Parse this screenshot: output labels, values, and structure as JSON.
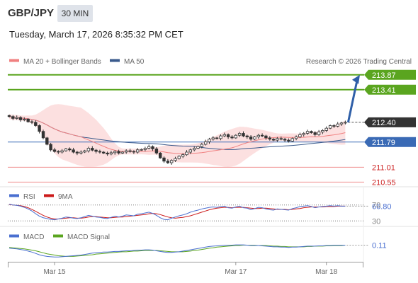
{
  "header": {
    "symbol": "GBP/JPY",
    "timeframe": "30 MIN",
    "datetime": "Tuesday, March 17, 2026 8:35:32 PM CET",
    "attribution": "Research © 2026 Trading Central"
  },
  "colors": {
    "resistance": "#5aa51f",
    "support": "#f08e8e",
    "pivot": "#3a6ab5",
    "current": "#333333",
    "bollinger_fill": "#fbd6d6",
    "ma20": "#f08080",
    "ma50": "#3a5a8c",
    "rsi": "#4a6fd0",
    "rsi_ma": "#cc1a1a",
    "macd": "#4a6fd0",
    "macd_signal": "#5aa51f",
    "arrow": "#2f5fa8"
  },
  "chart_data": [
    {
      "type": "candlestick",
      "legend": [
        {
          "name": "MA 20 + Bollinger Bands",
          "color": "#f08080"
        },
        {
          "name": "MA 50",
          "color": "#3a5a8c"
        }
      ],
      "ylim": [
        210.45,
        214.15
      ],
      "levels": [
        {
          "value": 213.87,
          "label": "213.87",
          "kind": "resistance"
        },
        {
          "value": 213.41,
          "label": "213.41",
          "kind": "resistance"
        },
        {
          "value": 212.4,
          "label": "212.40",
          "kind": "current"
        },
        {
          "value": 211.79,
          "label": "211.79",
          "kind": "pivot"
        },
        {
          "value": 211.01,
          "label": "211.01",
          "kind": "support"
        },
        {
          "value": 210.55,
          "label": "210.55",
          "kind": "support"
        }
      ],
      "close": [
        212.58,
        212.52,
        212.55,
        212.48,
        212.5,
        212.42,
        212.4,
        212.3,
        212.12,
        211.92,
        211.72,
        211.55,
        211.5,
        211.48,
        211.52,
        211.58,
        211.55,
        211.48,
        211.45,
        211.48,
        211.52,
        211.6,
        211.54,
        211.5,
        211.48,
        211.45,
        211.42,
        211.46,
        211.5,
        211.45,
        211.48,
        211.52,
        211.5,
        211.48,
        211.55,
        211.56,
        211.6,
        211.65,
        211.58,
        211.45,
        211.3,
        211.2,
        211.15,
        211.22,
        211.28,
        211.35,
        211.4,
        211.48,
        211.55,
        211.6,
        211.65,
        211.72,
        211.8,
        211.88,
        211.92,
        211.9,
        211.98,
        212.02,
        211.95,
        211.92,
        212.0,
        212.06,
        211.98,
        211.95,
        211.88,
        211.95,
        212.0,
        211.98,
        211.92,
        211.88,
        211.85,
        211.9,
        211.88,
        211.85,
        211.82,
        211.9,
        211.95,
        212.02,
        212.06,
        212.12,
        212.08,
        212.02,
        212.1,
        212.15,
        212.22,
        212.3,
        212.28,
        212.35,
        212.38,
        212.4
      ],
      "trend_arrow": {
        "from_value": 212.4,
        "to_value": 213.87
      }
    },
    {
      "type": "line",
      "legend": [
        {
          "name": "RSI",
          "color": "#4a6fd0"
        },
        {
          "name": "9MA",
          "color": "#cc1a1a"
        }
      ],
      "reference_lines": [
        70,
        30
      ],
      "ylim": [
        20,
        80
      ],
      "last_value_label": "66.80",
      "tick_labels": [
        "70",
        "30"
      ],
      "rsi": [
        72,
        70,
        69,
        67,
        64,
        60,
        55,
        48,
        42,
        38,
        36,
        34,
        33,
        35,
        37,
        40,
        39,
        37,
        36,
        38,
        41,
        44,
        42,
        40,
        39,
        37,
        36,
        39,
        42,
        40,
        42,
        45,
        44,
        43,
        47,
        48,
        50,
        52,
        49,
        44,
        38,
        34,
        33,
        37,
        40,
        43,
        45,
        48,
        52,
        55,
        57,
        60,
        62,
        64,
        65,
        64,
        66,
        67,
        63,
        62,
        65,
        67,
        63,
        62,
        58,
        61,
        64,
        63,
        60,
        58,
        57,
        60,
        59,
        58,
        57,
        61,
        63,
        66,
        67,
        68,
        66,
        63,
        65,
        66,
        67,
        68,
        67,
        68,
        67,
        67
      ],
      "ma9": [
        71,
        70,
        69,
        68,
        66,
        63,
        59,
        54,
        49,
        44,
        40,
        37,
        35,
        35,
        36,
        37,
        38,
        38,
        37,
        37,
        38,
        40,
        41,
        41,
        40,
        39,
        38,
        38,
        39,
        40,
        40,
        41,
        42,
        43,
        44,
        45,
        46,
        48,
        49,
        48,
        46,
        43,
        40,
        38,
        37,
        38,
        39,
        41,
        43,
        46,
        49,
        52,
        55,
        58,
        60,
        62,
        63,
        64,
        64,
        63,
        64,
        64,
        64,
        63,
        62,
        61,
        61,
        62,
        62,
        61,
        60,
        59,
        59,
        59,
        58,
        59,
        60,
        61,
        63,
        64,
        65,
        65,
        65,
        65,
        66,
        66,
        66,
        67,
        67,
        67
      ]
    },
    {
      "type": "line",
      "legend": [
        {
          "name": "MACD",
          "color": "#4a6fd0"
        },
        {
          "name": "MACD Signal",
          "color": "#5aa51f"
        }
      ],
      "ylim": [
        -0.35,
        0.25
      ],
      "last_value_label": "0.11",
      "macd": [
        0.02,
        0.01,
        0.0,
        -0.02,
        -0.04,
        -0.07,
        -0.1,
        -0.14,
        -0.18,
        -0.21,
        -0.23,
        -0.24,
        -0.25,
        -0.25,
        -0.24,
        -0.23,
        -0.22,
        -0.21,
        -0.2,
        -0.19,
        -0.17,
        -0.15,
        -0.13,
        -0.12,
        -0.11,
        -0.1,
        -0.1,
        -0.09,
        -0.08,
        -0.08,
        -0.07,
        -0.06,
        -0.06,
        -0.05,
        -0.04,
        -0.04,
        -0.03,
        -0.03,
        -0.04,
        -0.06,
        -0.08,
        -0.1,
        -0.11,
        -0.11,
        -0.1,
        -0.09,
        -0.07,
        -0.05,
        -0.03,
        -0.01,
        0.01,
        0.03,
        0.05,
        0.07,
        0.08,
        0.09,
        0.1,
        0.11,
        0.11,
        0.11,
        0.12,
        0.12,
        0.12,
        0.11,
        0.1,
        0.1,
        0.1,
        0.09,
        0.08,
        0.07,
        0.06,
        0.06,
        0.05,
        0.05,
        0.04,
        0.05,
        0.05,
        0.06,
        0.07,
        0.08,
        0.08,
        0.08,
        0.09,
        0.09,
        0.1,
        0.1,
        0.11,
        0.11,
        0.11,
        0.11
      ],
      "signal": [
        0.04,
        0.03,
        0.02,
        0.01,
        0.0,
        -0.02,
        -0.04,
        -0.06,
        -0.09,
        -0.12,
        -0.15,
        -0.17,
        -0.19,
        -0.21,
        -0.22,
        -0.23,
        -0.23,
        -0.23,
        -0.22,
        -0.21,
        -0.2,
        -0.19,
        -0.18,
        -0.16,
        -0.15,
        -0.14,
        -0.13,
        -0.12,
        -0.11,
        -0.1,
        -0.09,
        -0.09,
        -0.08,
        -0.07,
        -0.07,
        -0.06,
        -0.05,
        -0.05,
        -0.05,
        -0.05,
        -0.06,
        -0.07,
        -0.08,
        -0.09,
        -0.09,
        -0.09,
        -0.09,
        -0.08,
        -0.07,
        -0.05,
        -0.04,
        -0.02,
        0.0,
        0.02,
        0.03,
        0.05,
        0.06,
        0.07,
        0.08,
        0.09,
        0.1,
        0.1,
        0.11,
        0.11,
        0.11,
        0.11,
        0.1,
        0.1,
        0.1,
        0.09,
        0.08,
        0.08,
        0.07,
        0.07,
        0.06,
        0.06,
        0.06,
        0.06,
        0.06,
        0.07,
        0.07,
        0.08,
        0.08,
        0.08,
        0.09,
        0.09,
        0.1,
        0.1,
        0.1,
        0.11
      ]
    }
  ],
  "x_axis": {
    "tick_labels": [
      "Mar 15",
      "Mar 17",
      "Mar 18"
    ],
    "tick_index": [
      12,
      60,
      84
    ]
  }
}
